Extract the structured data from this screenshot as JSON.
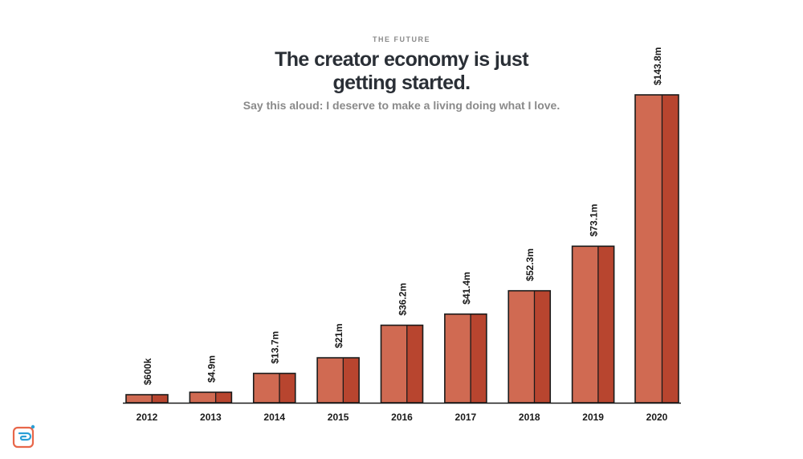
{
  "header": {
    "eyebrow": "THE FUTURE",
    "title": "The creator economy is just getting started.",
    "subtitle": "Say this aloud: I deserve to make a living doing what I love."
  },
  "logo": {
    "icon": "brand-logo-icon"
  },
  "colors": {
    "bar_front": "#d06a52",
    "bar_side": "#b8452f",
    "outline": "#1a1a1a",
    "label": "#1a1a1a"
  },
  "chart_data": {
    "type": "bar",
    "categories": [
      "2012",
      "2013",
      "2014",
      "2015",
      "2016",
      "2017",
      "2018",
      "2019",
      "2020"
    ],
    "values": [
      0.6,
      4.9,
      13.7,
      21,
      36.2,
      41.4,
      52.3,
      73.1,
      143.8
    ],
    "data_labels": [
      "$600k",
      "$4.9m",
      "$13.7m",
      "$21m",
      "$36.2m",
      "$41.4m",
      "$52.3m",
      "$73.1m",
      "$143.8m"
    ],
    "title": "",
    "xlabel": "",
    "ylabel": "",
    "grid": false,
    "legend": "none"
  }
}
